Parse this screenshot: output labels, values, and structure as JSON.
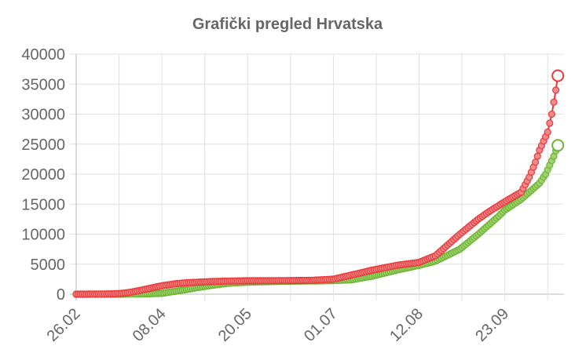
{
  "chart_data": {
    "type": "line",
    "title": "Grafički pregled Hrvatska",
    "xlabel": "",
    "ylabel": "",
    "x_range": [
      "26.02",
      "19.10"
    ],
    "x_ticks": [
      "26.02",
      "08.04",
      "20.05",
      "01.07",
      "12.08",
      "23.09"
    ],
    "ylim": [
      0,
      40000
    ],
    "y_ticks": [
      "0",
      "5000",
      "10000",
      "15000",
      "20000",
      "25000",
      "30000",
      "35000",
      "40000"
    ],
    "grid": true,
    "legend": "none",
    "series": [
      {
        "color": "#e8383a",
        "marker_fill": "#f28b8c",
        "points": [
          [
            "26.02",
            0
          ],
          [
            "05.03",
            10
          ],
          [
            "15.03",
            50
          ],
          [
            "20.03",
            150
          ],
          [
            "25.03",
            400
          ],
          [
            "01.04",
            900
          ],
          [
            "08.04",
            1400
          ],
          [
            "15.04",
            1750
          ],
          [
            "20.04",
            1900
          ],
          [
            "01.05",
            2080
          ],
          [
            "10.05",
            2180
          ],
          [
            "20.05",
            2230
          ],
          [
            "01.06",
            2250
          ],
          [
            "10.06",
            2270
          ],
          [
            "20.06",
            2300
          ],
          [
            "01.07",
            2500
          ],
          [
            "10.07",
            3200
          ],
          [
            "20.07",
            4000
          ],
          [
            "01.08",
            4800
          ],
          [
            "12.08",
            5300
          ],
          [
            "20.08",
            6400
          ],
          [
            "01.09",
            10000
          ],
          [
            "10.09",
            12500
          ],
          [
            "15.09",
            13700
          ],
          [
            "23.09",
            15400
          ],
          [
            "01.10",
            17000
          ],
          [
            "05.10",
            19500
          ],
          [
            "08.10",
            22000
          ],
          [
            "10.10",
            24000
          ],
          [
            "12.10",
            25500
          ],
          [
            "14.10",
            27000
          ],
          [
            "15.10",
            28500
          ],
          [
            "16.10",
            30000
          ],
          [
            "17.10",
            32000
          ],
          [
            "18.10",
            34000
          ],
          [
            "19.10",
            36400
          ]
        ]
      },
      {
        "color": "#6cb434",
        "marker_fill": "#9fd16e",
        "points": [
          [
            "26.02",
            0
          ],
          [
            "10.03",
            0
          ],
          [
            "20.03",
            5
          ],
          [
            "01.04",
            50
          ],
          [
            "08.04",
            150
          ],
          [
            "15.04",
            500
          ],
          [
            "01.05",
            1400
          ],
          [
            "10.05",
            1800
          ],
          [
            "20.05",
            2000
          ],
          [
            "01.06",
            2100
          ],
          [
            "10.06",
            2150
          ],
          [
            "20.06",
            2200
          ],
          [
            "01.07",
            2250
          ],
          [
            "10.07",
            2400
          ],
          [
            "20.07",
            3000
          ],
          [
            "01.08",
            4000
          ],
          [
            "12.08",
            4800
          ],
          [
            "20.08",
            5500
          ],
          [
            "01.09",
            7500
          ],
          [
            "10.09",
            10000
          ],
          [
            "15.09",
            11500
          ],
          [
            "20.09",
            13000
          ],
          [
            "23.09",
            14000
          ],
          [
            "01.10",
            15800
          ],
          [
            "05.10",
            17000
          ],
          [
            "10.10",
            18500
          ],
          [
            "13.10",
            20000
          ],
          [
            "15.10",
            21500
          ],
          [
            "17.10",
            23000
          ],
          [
            "19.10",
            24800
          ]
        ]
      }
    ]
  }
}
